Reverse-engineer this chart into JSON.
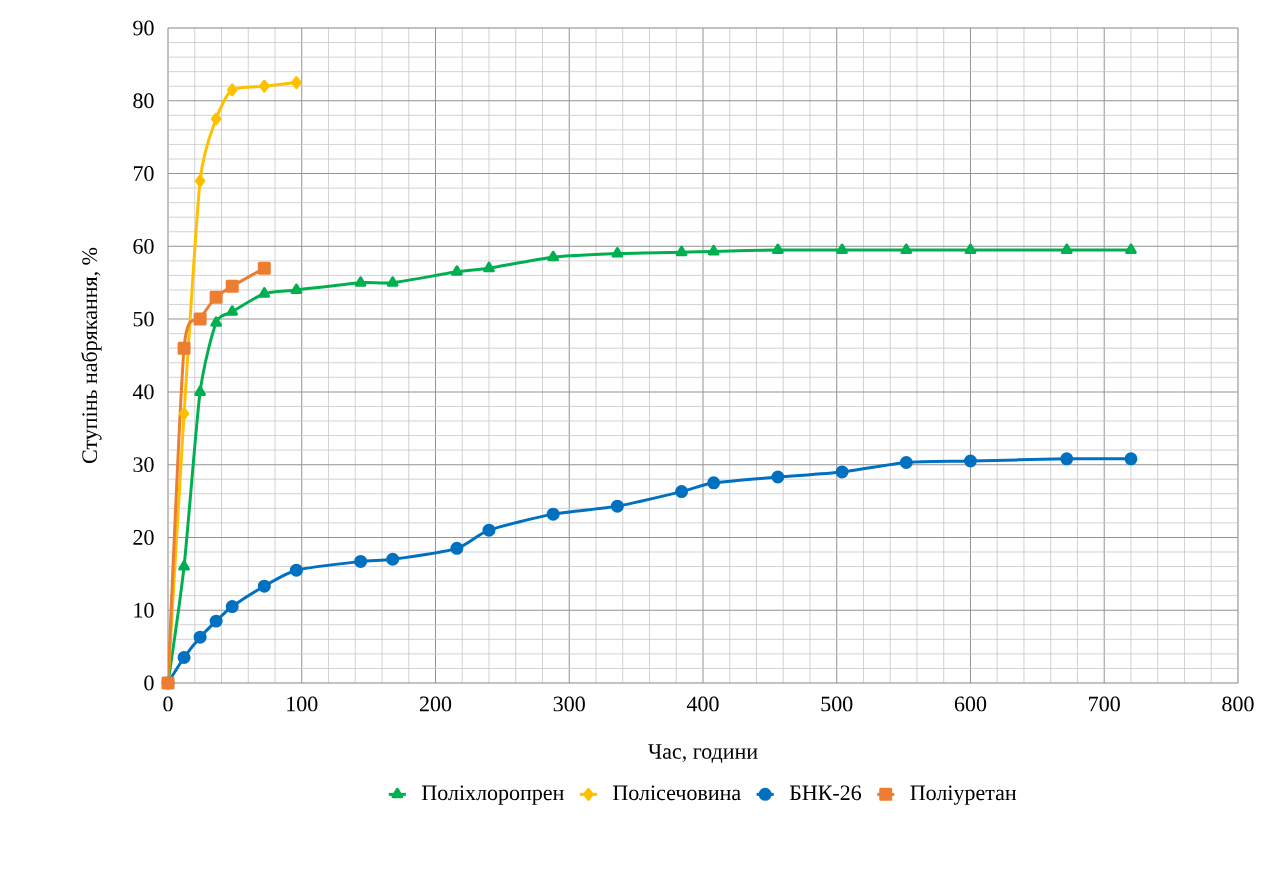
{
  "chart_data": {
    "type": "line",
    "xlabel": "Час, години",
    "ylabel": "Ступінь набрякання, %",
    "xlim": [
      0,
      800
    ],
    "ylim": [
      0,
      90
    ],
    "xticks": [
      0,
      100,
      200,
      300,
      400,
      500,
      600,
      700,
      800
    ],
    "yticks": [
      0,
      10,
      20,
      30,
      40,
      50,
      60,
      70,
      80,
      90
    ],
    "grid": true,
    "legend": "bottom",
    "series": [
      {
        "name": "Поліхлоропрен",
        "color": "#00b050",
        "marker": "triangle",
        "x": [
          0,
          12,
          24,
          36,
          48,
          72,
          96,
          144,
          168,
          216,
          240,
          288,
          336,
          384,
          408,
          456,
          504,
          552,
          600,
          672,
          720
        ],
        "values": [
          0,
          16,
          40,
          49.5,
          51,
          53.5,
          54,
          55,
          55,
          56.5,
          57,
          58.5,
          59,
          59.2,
          59.3,
          59.5,
          59.5,
          59.5,
          59.5,
          59.5,
          59.5
        ]
      },
      {
        "name": "Полісечовина",
        "color": "#ffc000",
        "marker": "diamond",
        "x": [
          0,
          12,
          24,
          36,
          48,
          72,
          96
        ],
        "values": [
          0,
          37,
          69,
          77.5,
          81.5,
          82,
          82.5
        ]
      },
      {
        "name": "БНК-26",
        "color": "#0070c0",
        "marker": "circle",
        "x": [
          0,
          12,
          24,
          36,
          48,
          72,
          96,
          144,
          168,
          216,
          240,
          288,
          336,
          384,
          408,
          456,
          504,
          552,
          600,
          672,
          720
        ],
        "values": [
          0,
          3.5,
          6.3,
          8.5,
          10.5,
          13.3,
          15.5,
          16.7,
          17,
          18.5,
          21,
          23.2,
          24.3,
          26.3,
          27.5,
          28.3,
          29,
          30.3,
          30.5,
          30.8,
          30.8
        ]
      },
      {
        "name": "Поліуретан",
        "color": "#ed7d31",
        "marker": "square",
        "x": [
          0,
          12,
          24,
          36,
          48,
          72
        ],
        "values": [
          0,
          46,
          50,
          53,
          54.5,
          57
        ]
      }
    ]
  }
}
